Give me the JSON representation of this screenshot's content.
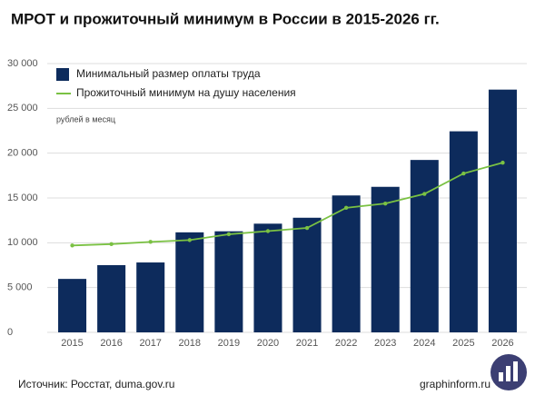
{
  "chart_data": {
    "type": "bar",
    "title": "МРОТ и прожиточный минимум в России в 2015-2026 гг.",
    "y_label": "рублей в месяц",
    "categories": [
      "2015",
      "2016",
      "2017",
      "2018",
      "2019",
      "2020",
      "2021",
      "2022",
      "2023",
      "2024",
      "2025",
      "2026"
    ],
    "series": [
      {
        "name": "Минимальный размер оплаты труда",
        "type": "bar",
        "color": "#0d2b5c",
        "values": [
          5965,
          7500,
          7800,
          11163,
          11280,
          12130,
          12792,
          15279,
          16242,
          19242,
          22440,
          27093
        ]
      },
      {
        "name": "Прожиточный минимум на душу населения",
        "type": "line",
        "color": "#7ac143",
        "values": [
          9700,
          9850,
          10100,
          10300,
          10950,
          11300,
          11650,
          13900,
          14375,
          15450,
          17733,
          18939
        ]
      }
    ],
    "ylim": [
      0,
      30000
    ],
    "yticks": [
      {
        "value": 0,
        "label": "0"
      },
      {
        "value": 5000,
        "label": "5 000"
      },
      {
        "value": 10000,
        "label": "10 000"
      },
      {
        "value": 15000,
        "label": "15 000"
      },
      {
        "value": 20000,
        "label": "20 000"
      },
      {
        "value": 25000,
        "label": "25 000"
      },
      {
        "value": 30000,
        "label": "30 000"
      }
    ],
    "grid": true,
    "legend": "top-left",
    "source": "Источник: Росстат, duma.gov.ru",
    "site": "graphinform.ru"
  }
}
